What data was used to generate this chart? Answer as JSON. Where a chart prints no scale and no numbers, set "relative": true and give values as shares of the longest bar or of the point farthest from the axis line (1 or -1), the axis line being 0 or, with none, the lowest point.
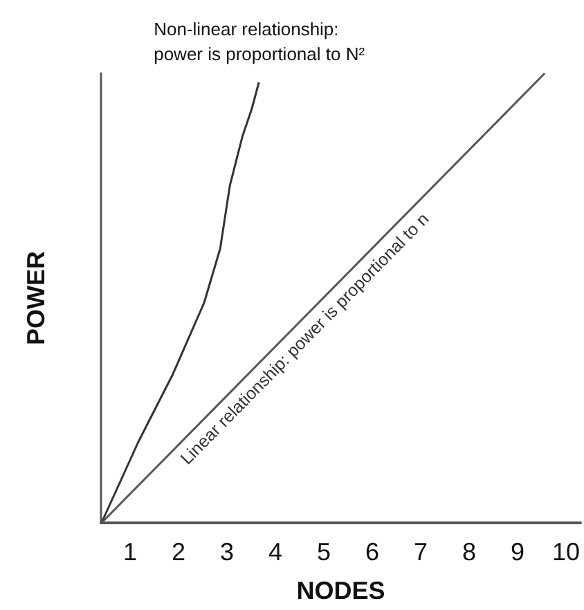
{
  "chart_data": {
    "type": "line",
    "relative": true,
    "xlabel": "NODES",
    "ylabel": "POWER",
    "xlim": [
      0.4,
      10.3
    ],
    "xticks": [
      1,
      2,
      3,
      4,
      5,
      6,
      7,
      8,
      9,
      10
    ],
    "grid": false,
    "marker": "none",
    "line_style": "solid",
    "series": [
      {
        "color": "#333333",
        "x": [
          0.41,
          1.17,
          1.88,
          2.53,
          2.86,
          3.06,
          3.32,
          3.51,
          3.66
        ],
        "values": [
          0,
          0.18,
          0.33,
          0.49,
          0.61,
          0.75,
          0.86,
          0.92,
          0.98
        ]
      },
      {
        "color": "#555555",
        "x": [
          0.41,
          9.56
        ],
        "values": [
          0,
          1
        ]
      }
    ],
    "annotations": [
      "Non-linear relationship:\npower is proportional to N²",
      "Linear relationship: power is proportional to n"
    ]
  }
}
